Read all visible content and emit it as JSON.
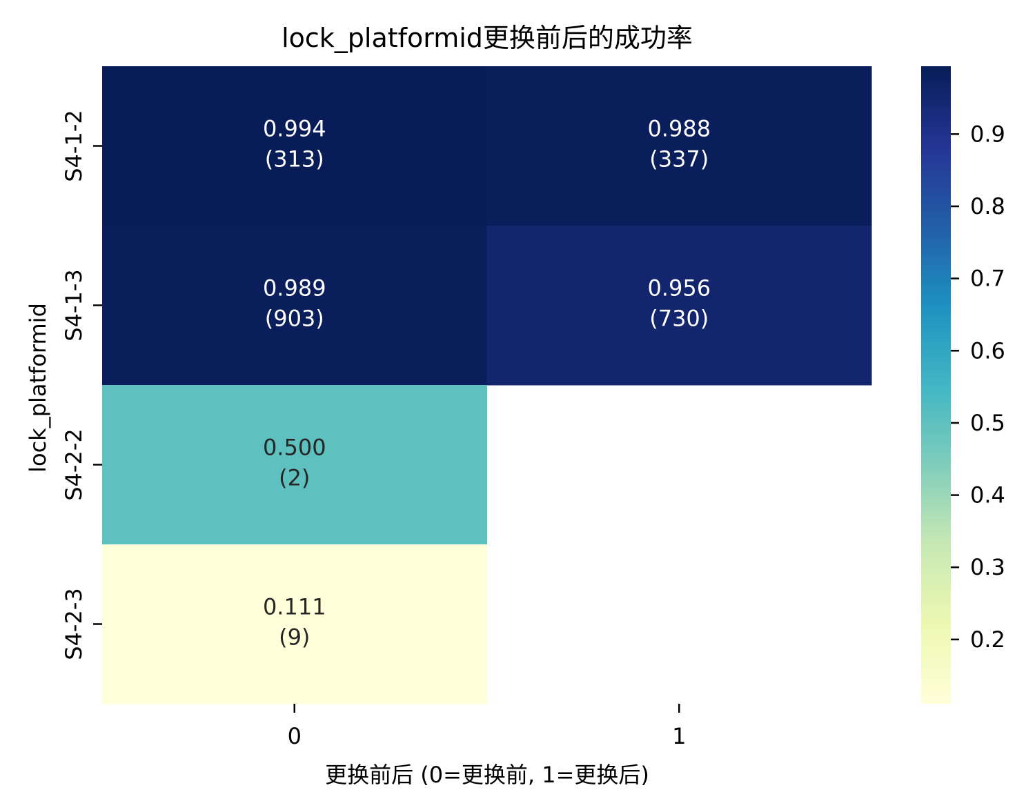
{
  "chart_data": {
    "type": "heatmap",
    "title": "lock_platformid更换前后的成功率",
    "xlabel": "更换前后 (0=更换前, 1=更换后)",
    "ylabel": "lock_platformid",
    "x_categories": [
      "0",
      "1"
    ],
    "y_categories": [
      "S4-1-2",
      "S4-1-3",
      "S4-2-2",
      "S4-2-3"
    ],
    "cells": [
      {
        "row": "S4-1-2",
        "col": "0",
        "value": 0.994,
        "count": 313,
        "label": "0.994",
        "count_label": "(313)"
      },
      {
        "row": "S4-1-2",
        "col": "1",
        "value": 0.988,
        "count": 337,
        "label": "0.988",
        "count_label": "(337)"
      },
      {
        "row": "S4-1-3",
        "col": "0",
        "value": 0.989,
        "count": 903,
        "label": "0.989",
        "count_label": "(903)"
      },
      {
        "row": "S4-1-3",
        "col": "1",
        "value": 0.956,
        "count": 730,
        "label": "0.956",
        "count_label": "(730)"
      },
      {
        "row": "S4-2-2",
        "col": "0",
        "value": 0.5,
        "count": 2,
        "label": "0.500",
        "count_label": "(2)"
      },
      {
        "row": "S4-2-2",
        "col": "1",
        "value": null,
        "count": null,
        "label": "",
        "count_label": ""
      },
      {
        "row": "S4-2-3",
        "col": "0",
        "value": 0.111,
        "count": 9,
        "label": "0.111",
        "count_label": "(9)"
      },
      {
        "row": "S4-2-3",
        "col": "1",
        "value": null,
        "count": null,
        "label": "",
        "count_label": ""
      }
    ],
    "colormap": "YlGnBu",
    "colorbar": {
      "range": [
        0.111,
        0.994
      ],
      "ticks": [
        0.2,
        0.3,
        0.4,
        0.5,
        0.6,
        0.7,
        0.8,
        0.9
      ],
      "tick_labels": [
        "0.2",
        "0.3",
        "0.4",
        "0.5",
        "0.6",
        "0.7",
        "0.8",
        "0.9"
      ]
    },
    "grid": false,
    "legend": "colorbar-right"
  }
}
